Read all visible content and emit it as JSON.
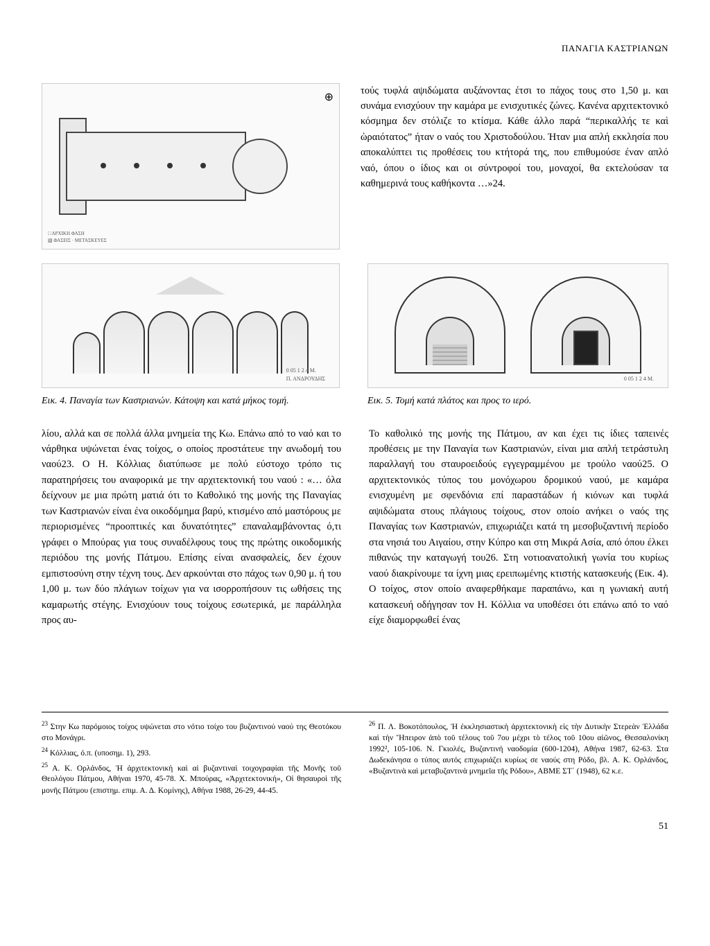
{
  "header": {
    "running_title": "ΠΑΝΑΓΙΑ ΚΑΣΤΡΙΑΝΩΝ"
  },
  "figures": {
    "fig4_legend1": "ΑΡΧΙΚΗ ΦΑΣΗ",
    "fig4_legend2": "ΦΑΣΕΙΣ · ΜΕΤΑΣΚΕΥΕΣ",
    "fig4_signature": "Π. ΑΝΔΡΟΥΔΗΣ",
    "fig4_scale": "0  05  1        2              4 Μ.",
    "fig5_scale": "0  05  1        2              4 Μ.",
    "fig4_caption": "Εικ. 4. Παναγία των Καστριανών. Κάτοψη και κατά μήκος τομή.",
    "fig5_caption": "Εικ. 5. Τομή κατά πλάτος και προς το ιερό."
  },
  "top_text": "τούς τυφλά αψιδώματα αυξάνοντας έτσι το πάχος τους στο 1,50 μ. και συνάμα ενισχύουν την καμάρα με ενισχυτικές ζώνες. Κανένα αρχιτεκτονικό κόσμημα δεν στόλιζε το κτίσμα. Κάθε άλλο παρά “περικαλλής τε καὶ ὡραιότατος” ήταν ο ναός του Χριστοδούλου. Ήταν μια απλή εκκλησία που αποκαλύπτει τις προθέσεις του κτήτορά της, που επιθυμούσε έναν απλό ναό, όπου ο ίδιος και οι σύντροφοί του, μοναχοί, θα εκτελούσαν τα καθημερινά τους καθήκοντα …»24.",
  "body": {
    "left": "λίου, αλλά και σε πολλά άλλα μνημεία της Κω. Επάνω από το ναό και το νάρθηκα υψώνεται ένας τοίχος, ο οποίος προστάτευε την ανωδομή του ναού23.\nΟ Η. Κόλλιας διατύπωσε με πολύ εύστοχο τρόπο τις παρατηρήσεις του αναφορικά με την αρχιτεκτονική του ναού : «… όλα δείχνουν με μια πρώτη ματιά ότι το Καθολικό της μονής της Παναγίας των Καστριανών είναι ένα οικοδόμημα βαρύ, κτισμένο από μαστόρους με περιορισμένες “προοπτικές και δυνατότητες” επαναλαμβάνοντας ό,τι γράφει ο Μπούρας για τους συναδέλφους τους της πρώτης οικοδομικής περιόδου της μονής Πάτμου. Επίσης είναι ανασφαλείς, δεν έχουν εμπιστοσύνη στην τέχνη τους. Δεν αρκούνται στο πάχος των 0,90 μ. ή του 1,00 μ. των δύο πλάγιων τοίχων για να ισορροπήσουν τις ωθήσεις της καμαρωτής στέγης. Ενισχύουν τους τοίχους εσωτερικά, με παράλληλα προς αυ-",
    "right": "Το καθολικό της μονής της Πάτμου, αν και έχει τις ίδιες ταπεινές προθέσεις με την Παναγία των Καστριανών, είναι μια απλή τετράστυλη παραλλαγή του σταυροειδούς εγγεγραμμένου με τρούλο ναού25.\nΟ αρχιτεκτονικός τύπος του μονόχωρου δρομικού ναού, με καμάρα ενισχυμένη με σφενδόνια επί παραστάδων ή κιόνων και τυφλά αψιδώματα στους πλάγιους τοίχους, στον οποίο ανήκει ο ναός της Παναγίας των Καστριανών, επιχωριάζει κατά τη μεσοβυζαντινή περίοδο στα νησιά του Αιγαίου, στην Κύπρο και στη Μικρά Ασία, από όπου έλκει πιθανώς την καταγωγή του26.\nΣτη νοτιοανατολική γωνία του κυρίως ναού διακρίνουμε τα ίχνη μιας ερειπωμένης κτιστής κατασκευής (Εικ. 4). Ο τοίχος, στον οποίο αναφερθήκαμε παραπάνω, και η γωνιακή αυτή κατασκευή οδήγησαν τον Η. Κόλλια να υποθέσει ότι επάνω από το ναό είχε διαμορφωθεί ένας"
  },
  "footnotes": {
    "n23": "Στην Κω παρόμοιος τοίχος υψώνεται στο νότιο τοίχο του βυζαντινού ναού της Θεοτόκου στο Μονάγρι.",
    "n24": "Κόλλιας, ό.π. (υποσημ. 1), 293.",
    "n25": "Α. Κ. Ορλάνδος, Ἡ ἀρχιτεκτονικὴ καὶ αἱ βυζαντιναὶ τοιχογραφίαι τῆς Μονῆς τοῦ Θεολόγου Πάτμου, Αθήναι 1970, 45-78. Χ. Μπούρας, «Ἀρχιτεκτονική», Οἱ θησαυροὶ τῆς μονῆς Πάτμου (επιστημ. επιμ. Α. Δ. Κομίνης), Αθήνα 1988, 26-29, 44-45.",
    "n26": "Π. Λ. Βοκοτόπουλος, Ἡ ἐκκλησιαστικὴ ἀρχιτεκτονικὴ εἰς τὴν Δυτικὴν Στερεὰν Ἑλλάδα καὶ τὴν Ἤπειρον ἀπὸ τοῦ τέλους τοῦ 7ου μέχρι τὸ τέλος τοῦ 10ου αἰῶνος, Θεσσαλονίκη 1992², 105-106. Ν. Γκιολές, Βυζαντινή ναοδομία (600-1204), Αθήνα 1987, 62-63. Στα Δωδεκάνησα ο τύπος αυτός επιχωριάζει κυρίως σε ναούς στη Ρόδο, βλ. Α. Κ. Ορλάνδος, «Βυζαντινὰ καὶ μεταβυζαντινὰ μνημεῖα τῆς Ρόδου», ΑΒΜΕ ΣΤ΄ (1948), 62 κ.ε."
  },
  "page_number": "51",
  "colors": {
    "text": "#000000",
    "bg": "#ffffff",
    "figure_border": "#cccccc",
    "line_dark": "#333333"
  }
}
